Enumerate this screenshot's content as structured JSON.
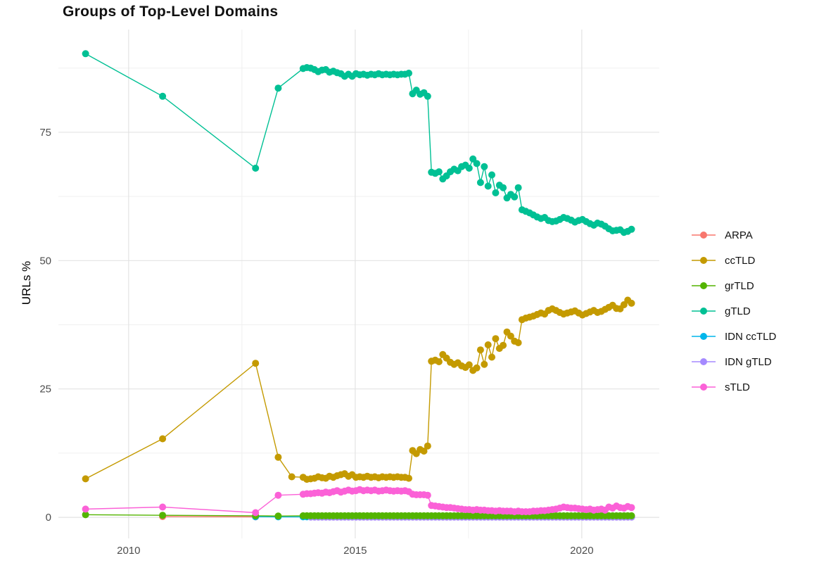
{
  "title": "Groups of Top-Level Domains",
  "chart_data": {
    "type": "line",
    "title": "Groups of Top-Level Domains",
    "xlabel": "",
    "ylabel": "URLs %",
    "grid": true,
    "legend_position": "right",
    "xlim": [
      2008.45,
      2021.71
    ],
    "ylim": [
      -4.1,
      95.0
    ],
    "x_ticks": [
      2010,
      2015,
      2020
    ],
    "x_tick_labels": [
      "2010",
      "2015",
      "2020"
    ],
    "x_minor_ticks": [
      2012.5,
      2017.5
    ],
    "y_ticks": [
      0,
      25,
      50,
      75
    ],
    "y_tick_labels": [
      "0",
      "25",
      "50",
      "75"
    ],
    "y_minor_ticks": [
      12.5,
      37.5,
      62.5,
      87.5
    ],
    "grid_major_color": "#e3e3e3",
    "grid_minor_color": "#f0f0f0",
    "tick_label_color": "#4d4d4d",
    "legend_order": [
      "ARPA",
      "ccTLD",
      "grTLD",
      "gTLD",
      "IDN ccTLD",
      "IDN gTLD",
      "sTLD"
    ],
    "series": [
      {
        "name": "ARPA",
        "color": "#F8766D",
        "points": [
          [
            2010.75,
            0.15
          ],
          [
            2012.8,
            0.1
          ]
        ]
      },
      {
        "name": "IDN ccTLD",
        "color": "#00B6EB",
        "points": [
          [
            2012.8,
            0.12
          ],
          [
            2013.3,
            0.1
          ]
        ],
        "flat": {
          "x0": 2013.85,
          "dx": 0.0833,
          "n": 88,
          "value": 0.1
        }
      },
      {
        "name": "IDN gTLD",
        "color": "#A58AFF",
        "points": [],
        "flat": {
          "x0": 2014.02,
          "dx": 0.0833,
          "n": 86,
          "value": 0.05
        }
      },
      {
        "name": "grTLD",
        "color": "#53B400",
        "points": [
          [
            2009.05,
            0.5
          ],
          [
            2010.75,
            0.4
          ],
          [
            2012.8,
            0.3
          ],
          [
            2013.3,
            0.25
          ]
        ],
        "flat": {
          "x0": 2013.85,
          "dx": 0.0833,
          "n": 88,
          "value": 0.3
        }
      },
      {
        "name": "ccTLD",
        "color": "#C49A00",
        "points": [
          [
            2009.05,
            7.5
          ],
          [
            2010.75,
            15.3
          ],
          [
            2012.8,
            30.0
          ],
          [
            2013.3,
            11.7
          ],
          [
            2013.6,
            7.9
          ]
        ],
        "dense": {
          "x0": 2013.85,
          "dx": 0.0833,
          "values": [
            7.8,
            7.4,
            7.5,
            7.6,
            7.9,
            7.7,
            7.6,
            8.0,
            7.8,
            8.1,
            8.3,
            8.5,
            8.0,
            8.3,
            7.8,
            7.9,
            7.8,
            8.0,
            7.8,
            7.9,
            7.7,
            7.9,
            7.8,
            7.9,
            7.8,
            7.9,
            7.8,
            7.8,
            7.6,
            13.0,
            12.4,
            13.2,
            12.9,
            13.9,
            30.4,
            30.6,
            30.3,
            31.7,
            31.0,
            30.2,
            29.8,
            30.1,
            29.5,
            29.2,
            29.7,
            28.6,
            29.1,
            32.6,
            29.8,
            33.6,
            31.2,
            34.8,
            32.9,
            33.5,
            36.1,
            35.3,
            34.3,
            34.0,
            38.5,
            38.8,
            39.0,
            39.2,
            39.5,
            39.8,
            39.6,
            40.3,
            40.6,
            40.3,
            39.9,
            39.6,
            39.8,
            40.0,
            40.2,
            39.8,
            39.4,
            39.7,
            40.0,
            40.3,
            39.9,
            40.1,
            40.5,
            40.9,
            41.3,
            40.7,
            40.6,
            41.4,
            42.3,
            41.7
          ]
        }
      },
      {
        "name": "gTLD",
        "color": "#00C094",
        "points": [
          [
            2009.05,
            90.3
          ],
          [
            2010.75,
            82.0
          ],
          [
            2012.8,
            68.0
          ],
          [
            2013.3,
            83.6
          ]
        ],
        "dense": {
          "x0": 2013.85,
          "dx": 0.0833,
          "values": [
            87.4,
            87.6,
            87.5,
            87.2,
            86.8,
            87.1,
            87.2,
            86.7,
            86.9,
            86.6,
            86.4,
            85.9,
            86.3,
            85.9,
            86.4,
            86.2,
            86.3,
            86.1,
            86.3,
            86.2,
            86.4,
            86.2,
            86.3,
            86.2,
            86.3,
            86.2,
            86.3,
            86.3,
            86.5,
            82.5,
            83.2,
            82.4,
            82.7,
            82.0,
            67.2,
            67.0,
            67.3,
            65.9,
            66.5,
            67.3,
            67.8,
            67.5,
            68.3,
            68.6,
            68.0,
            69.8,
            68.9,
            65.2,
            68.3,
            64.5,
            66.7,
            63.2,
            64.7,
            64.2,
            62.2,
            62.9,
            62.4,
            64.2,
            59.9,
            59.6,
            59.3,
            58.9,
            58.5,
            58.2,
            58.4,
            57.8,
            57.6,
            57.7,
            58.0,
            58.4,
            58.2,
            57.9,
            57.5,
            57.8,
            58.0,
            57.6,
            57.2,
            56.9,
            57.3,
            57.1,
            56.7,
            56.2,
            55.8,
            55.9,
            56.0,
            55.5,
            55.7,
            56.1
          ]
        }
      },
      {
        "name": "sTLD",
        "color": "#FB61D7",
        "points": [
          [
            2009.05,
            1.6
          ],
          [
            2010.75,
            2.0
          ],
          [
            2012.8,
            0.9
          ],
          [
            2013.3,
            4.3
          ]
        ],
        "dense": {
          "x0": 2013.85,
          "dx": 0.0833,
          "values": [
            4.5,
            4.6,
            4.6,
            4.7,
            4.8,
            4.7,
            4.9,
            4.8,
            5.0,
            5.2,
            4.9,
            5.1,
            5.3,
            5.1,
            5.2,
            5.4,
            5.2,
            5.3,
            5.2,
            5.3,
            5.1,
            5.2,
            5.3,
            5.2,
            5.1,
            5.2,
            5.1,
            5.2,
            5.0,
            4.5,
            4.4,
            4.4,
            4.4,
            4.3,
            2.3,
            2.2,
            2.1,
            2.0,
            1.9,
            1.9,
            1.8,
            1.7,
            1.6,
            1.5,
            1.5,
            1.4,
            1.5,
            1.4,
            1.4,
            1.3,
            1.3,
            1.2,
            1.3,
            1.2,
            1.2,
            1.2,
            1.1,
            1.2,
            1.1,
            1.1,
            1.1,
            1.2,
            1.2,
            1.3,
            1.3,
            1.4,
            1.5,
            1.6,
            1.8,
            2.0,
            1.9,
            1.8,
            1.8,
            1.7,
            1.6,
            1.5,
            1.6,
            1.4,
            1.5,
            1.6,
            1.4,
            2.0,
            1.8,
            2.2,
            1.9,
            1.8,
            2.1,
            1.9
          ]
        }
      }
    ]
  }
}
